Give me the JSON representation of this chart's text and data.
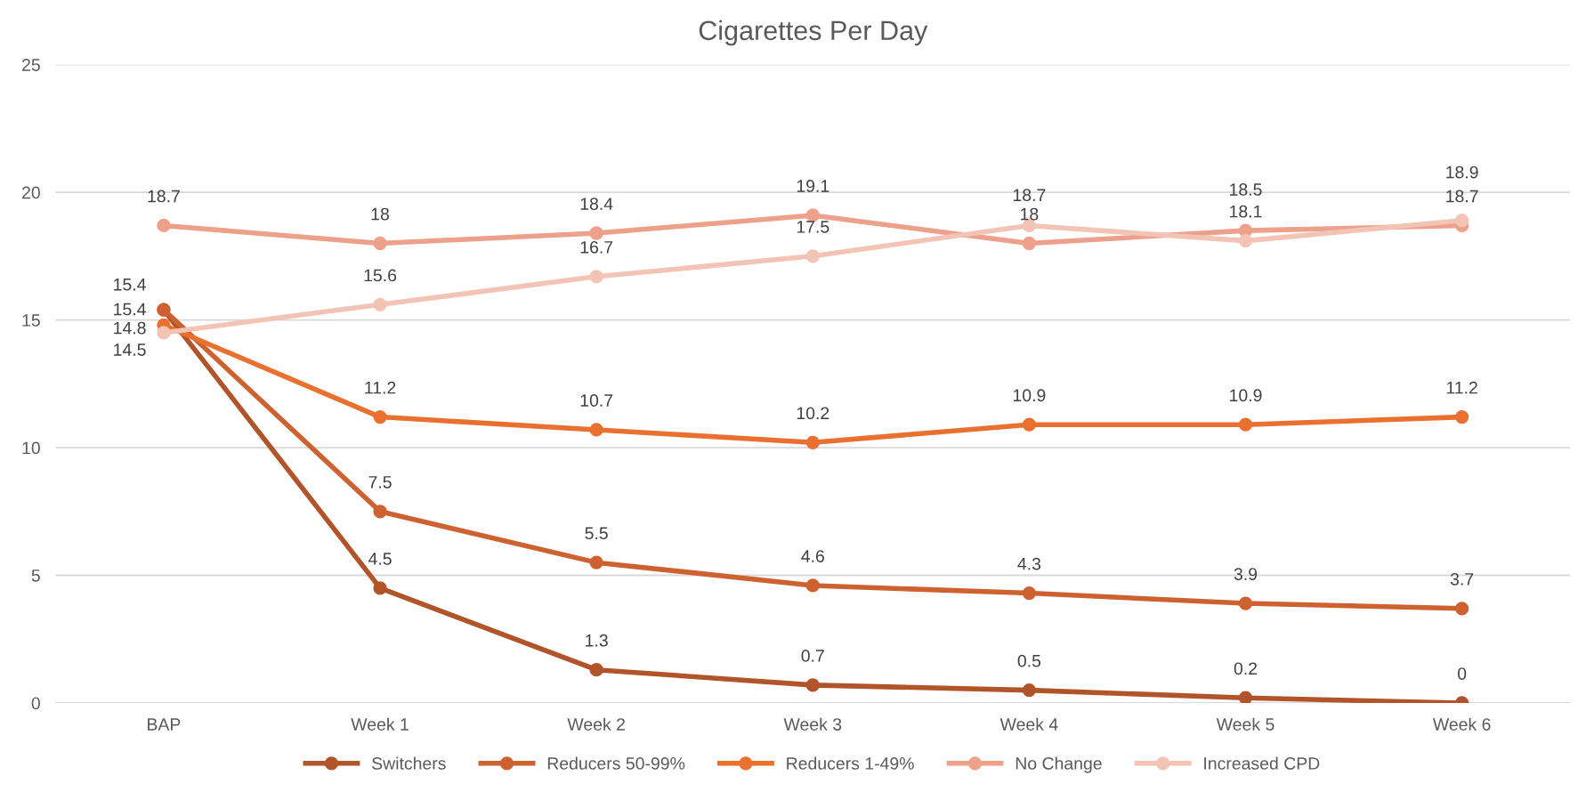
{
  "chart_data": {
    "type": "line",
    "title": "Cigarettes Per Day",
    "categories": [
      "BAP",
      "Week 1",
      "Week 2",
      "Week 3",
      "Week 4",
      "Week 5",
      "Week 6"
    ],
    "series": [
      {
        "name": "Switchers",
        "color": "#b2542a",
        "values": [
          15.4,
          4.5,
          1.3,
          0.7,
          0.5,
          0.2,
          0
        ]
      },
      {
        "name": "Reducers 50-99%",
        "color": "#cd6230",
        "values": [
          15.4,
          7.5,
          5.5,
          4.6,
          4.3,
          3.9,
          3.7
        ]
      },
      {
        "name": "Reducers 1-49%",
        "color": "#e9702f",
        "values": [
          14.8,
          11.2,
          10.7,
          10.2,
          10.9,
          10.9,
          11.2
        ]
      },
      {
        "name": "No Change",
        "color": "#eda08a",
        "values": [
          18.7,
          18,
          18.4,
          19.1,
          18,
          18.5,
          18.7
        ]
      },
      {
        "name": "Increased CPD",
        "color": "#f3c4b6",
        "values": [
          14.5,
          15.6,
          16.7,
          17.5,
          18.7,
          18.1,
          18.9
        ]
      }
    ],
    "ylim": [
      0,
      25
    ],
    "yticks": [
      0,
      5,
      10,
      15,
      20,
      25
    ],
    "grid": "y",
    "legend": "bottom",
    "marker": "circle",
    "line_style": "solid",
    "data_labels": true
  }
}
